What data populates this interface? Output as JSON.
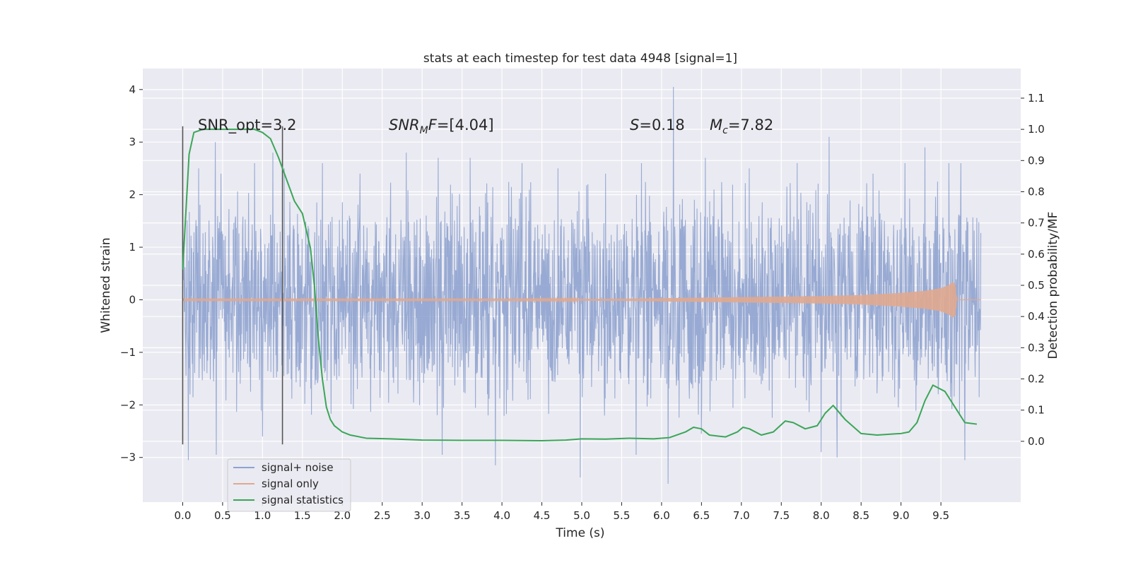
{
  "chart_data": {
    "type": "line",
    "title": "stats at each timestep for test data 4948 [signal=1]",
    "xlabel": "Time (s)",
    "ylabel_left": "Whitened strain",
    "ylabel_right": "Detection probability/MF",
    "xlim": [
      -0.5,
      10.5
    ],
    "ylim_left": [
      -3.85,
      4.4
    ],
    "ylim_right": [
      -0.195,
      1.195
    ],
    "xticks": [
      "0.0",
      "0.5",
      "1.0",
      "1.5",
      "2.0",
      "2.5",
      "3.0",
      "3.5",
      "4.0",
      "4.5",
      "5.0",
      "5.5",
      "6.0",
      "6.5",
      "7.0",
      "7.5",
      "8.0",
      "8.5",
      "9.0",
      "9.5"
    ],
    "yticks_left": [
      "4",
      "3",
      "2",
      "1",
      "0",
      "−1",
      "−2",
      "−3"
    ],
    "yticks_right": [
      "1.1",
      "1.0",
      "0.9",
      "0.8",
      "0.7",
      "0.6",
      "0.5",
      "0.4",
      "0.3",
      "0.2",
      "0.1",
      "0.0"
    ],
    "grid": true,
    "legend_position": "lower-left",
    "series": [
      {
        "name": "signal+ noise",
        "color": "#8fa3cf",
        "axis": "left",
        "x_range": [
          0.0,
          10.0
        ],
        "envelope_typical": [
          -1.4,
          1.4
        ],
        "peaks": [
          [
            0.0,
            1.7
          ],
          [
            0.2,
            2.5
          ],
          [
            0.41,
            3.0
          ],
          [
            0.48,
            2.4
          ],
          [
            0.9,
            2.6
          ],
          [
            1.13,
            2.8
          ],
          [
            1.27,
            2.5
          ],
          [
            1.75,
            2.6
          ],
          [
            2.22,
            2.4
          ],
          [
            2.8,
            2.8
          ],
          [
            3.2,
            2.7
          ],
          [
            3.6,
            2.7
          ],
          [
            4.25,
            2.6
          ],
          [
            4.7,
            2.5
          ],
          [
            5.3,
            2.4
          ],
          [
            5.75,
            2.6
          ],
          [
            6.15,
            4.05
          ],
          [
            6.55,
            2.7
          ],
          [
            7.1,
            2.5
          ],
          [
            7.7,
            2.6
          ],
          [
            8.1,
            3.1
          ],
          [
            8.65,
            2.4
          ],
          [
            9.05,
            2.6
          ],
          [
            9.3,
            2.9
          ],
          [
            9.6,
            2.6
          ],
          [
            9.75,
            2.6
          ]
        ],
        "troughs": [
          [
            0.07,
            -3.05
          ],
          [
            0.42,
            -2.95
          ],
          [
            1.0,
            -2.6
          ],
          [
            3.25,
            -2.95
          ],
          [
            3.92,
            -3.15
          ],
          [
            4.98,
            -3.38
          ],
          [
            5.68,
            -2.95
          ],
          [
            6.08,
            -3.5
          ],
          [
            6.5,
            -2.55
          ],
          [
            8.0,
            -2.9
          ],
          [
            8.2,
            -3.0
          ],
          [
            9.8,
            -3.05
          ]
        ]
      },
      {
        "name": "signal only",
        "color": "#e0a98f",
        "axis": "left",
        "x": [
          0.0,
          2.0,
          4.0,
          5.5,
          6.5,
          7.5,
          8.0,
          8.5,
          9.0,
          9.3,
          9.5,
          9.6,
          9.65,
          9.68,
          9.7,
          10.0
        ],
        "amplitude": [
          0.01,
          0.01,
          0.01,
          0.02,
          0.04,
          0.06,
          0.07,
          0.09,
          0.13,
          0.17,
          0.22,
          0.28,
          0.34,
          0.3,
          0.0,
          0.0
        ]
      },
      {
        "name": "signal statistics",
        "color": "#3aa657",
        "axis": "right",
        "x": [
          0.0,
          0.08,
          0.14,
          0.25,
          0.45,
          0.7,
          0.9,
          1.0,
          1.1,
          1.2,
          1.3,
          1.4,
          1.5,
          1.6,
          1.65,
          1.7,
          1.75,
          1.8,
          1.85,
          1.9,
          2.0,
          2.1,
          2.3,
          2.6,
          3.0,
          3.5,
          4.0,
          4.5,
          4.8,
          5.0,
          5.3,
          5.6,
          5.9,
          6.1,
          6.3,
          6.4,
          6.5,
          6.6,
          6.8,
          6.95,
          7.02,
          7.1,
          7.25,
          7.4,
          7.55,
          7.65,
          7.8,
          7.95,
          8.05,
          8.15,
          8.3,
          8.5,
          8.7,
          9.0,
          9.1,
          9.2,
          9.3,
          9.4,
          9.55,
          9.7,
          9.8,
          9.95
        ],
        "y": [
          0.55,
          0.92,
          0.99,
          1.0,
          1.0,
          1.0,
          1.0,
          0.99,
          0.97,
          0.91,
          0.84,
          0.77,
          0.73,
          0.62,
          0.5,
          0.33,
          0.2,
          0.11,
          0.07,
          0.05,
          0.03,
          0.02,
          0.01,
          0.008,
          0.004,
          0.003,
          0.003,
          0.002,
          0.004,
          0.008,
          0.007,
          0.01,
          0.008,
          0.012,
          0.03,
          0.045,
          0.04,
          0.02,
          0.014,
          0.03,
          0.045,
          0.04,
          0.02,
          0.03,
          0.065,
          0.06,
          0.04,
          0.05,
          0.09,
          0.115,
          0.07,
          0.025,
          0.02,
          0.025,
          0.03,
          0.06,
          0.13,
          0.18,
          0.16,
          0.1,
          0.06,
          0.055
        ]
      }
    ],
    "annotations": [
      {
        "text": "SNR_opt=3.2",
        "x": 0.2,
        "y": 1.0
      },
      {
        "text": "SNR_MF=[4.04]",
        "x": 2.6,
        "y": 1.0
      },
      {
        "text": "S=0.18",
        "x": 5.6,
        "y": 1.0
      },
      {
        "text": "M_c=7.82",
        "x": 6.6,
        "y": 1.0
      }
    ],
    "vertical_lines": [
      {
        "x": 0.0,
        "y_range": [
          -0.01,
          1.01
        ]
      },
      {
        "x": 1.25,
        "y_range": [
          -0.01,
          1.01
        ]
      }
    ]
  }
}
